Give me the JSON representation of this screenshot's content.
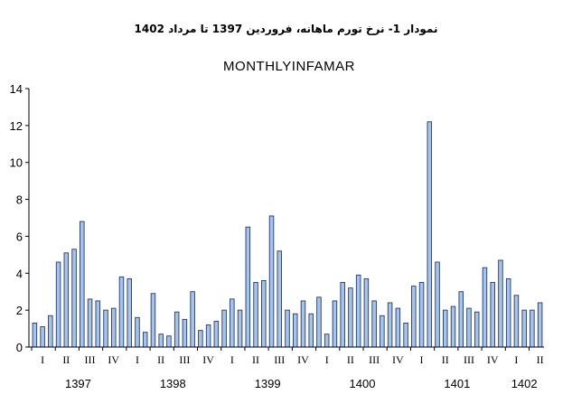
{
  "caption": "نمودار 1- نرخ تورم ماهانه، فروردین 1397 تا مرداد 1402",
  "chart_data": {
    "type": "bar",
    "title": "MONTHLYINFAMAR",
    "xlabel": "",
    "ylabel": "",
    "ylim": [
      0,
      14
    ],
    "yticks": [
      0,
      2,
      4,
      6,
      8,
      10,
      12,
      14
    ],
    "grid": false,
    "bar_color": "#a9c3e8",
    "bar_edge_color": "#1f3b73",
    "quarter_labels": [
      "I",
      "II",
      "III",
      "IV",
      "I",
      "II",
      "III",
      "IV",
      "I",
      "II",
      "III",
      "IV",
      "I",
      "II",
      "III",
      "IV",
      "I",
      "II",
      "III",
      "IV",
      "I",
      "II"
    ],
    "year_labels": [
      "1397",
      "1398",
      "1399",
      "1400",
      "1401",
      "1402"
    ],
    "values": [
      1.3,
      1.1,
      1.7,
      4.6,
      5.1,
      5.3,
      6.8,
      2.6,
      2.5,
      2.0,
      2.1,
      3.8,
      3.7,
      1.6,
      0.8,
      2.9,
      0.7,
      0.6,
      1.9,
      1.5,
      3.0,
      0.9,
      1.2,
      1.4,
      2.0,
      2.6,
      2.0,
      6.5,
      3.5,
      3.6,
      7.1,
      5.2,
      2.0,
      1.8,
      2.5,
      1.8,
      2.7,
      0.7,
      2.5,
      3.5,
      3.2,
      3.9,
      3.7,
      2.5,
      1.7,
      2.4,
      2.1,
      1.3,
      3.3,
      3.5,
      12.2,
      4.6,
      2.0,
      2.2,
      3.0,
      2.1,
      1.9,
      4.3,
      3.5,
      4.7,
      3.7,
      2.8,
      2.0,
      2.0,
      2.4
    ]
  }
}
